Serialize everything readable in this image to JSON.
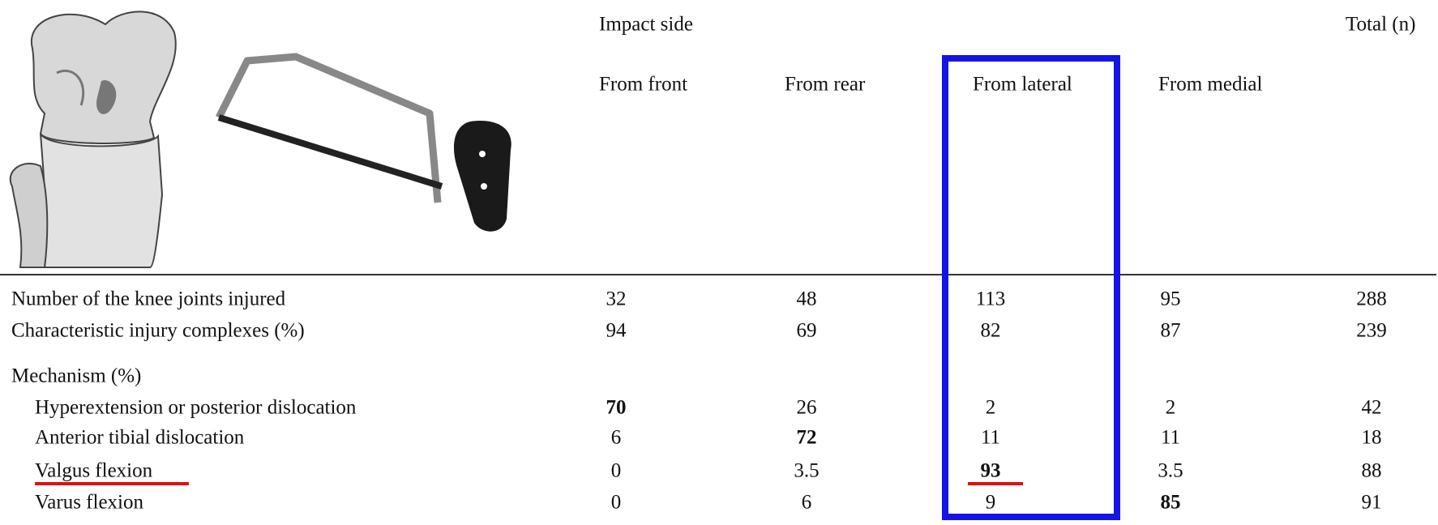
{
  "header": {
    "impact_side": "Impact side",
    "total": "Total (n)",
    "columns": [
      "From front",
      "From rear",
      "From lateral",
      "From medial"
    ]
  },
  "table": {
    "rows": [
      {
        "label": "Number of the knee joints injured",
        "values": [
          32,
          48,
          113,
          95,
          288
        ]
      },
      {
        "label": "Characteristic injury complexes (%)",
        "values": [
          94,
          69,
          82,
          87,
          239
        ]
      }
    ],
    "mechanism": {
      "label": "Mechanism (%)",
      "rows": [
        {
          "label": "Hyperextension or posterior dislocation",
          "values": [
            70,
            26,
            2,
            2,
            42
          ]
        },
        {
          "label": "Anterior tibial dislocation",
          "values": [
            6,
            72,
            11,
            11,
            18
          ]
        },
        {
          "label": "Valgus flexion",
          "values": [
            0,
            3.5,
            93,
            3.5,
            88
          ]
        },
        {
          "label": "Varus flexion",
          "values": [
            0,
            6,
            9,
            85,
            91
          ]
        }
      ]
    }
  }
}
